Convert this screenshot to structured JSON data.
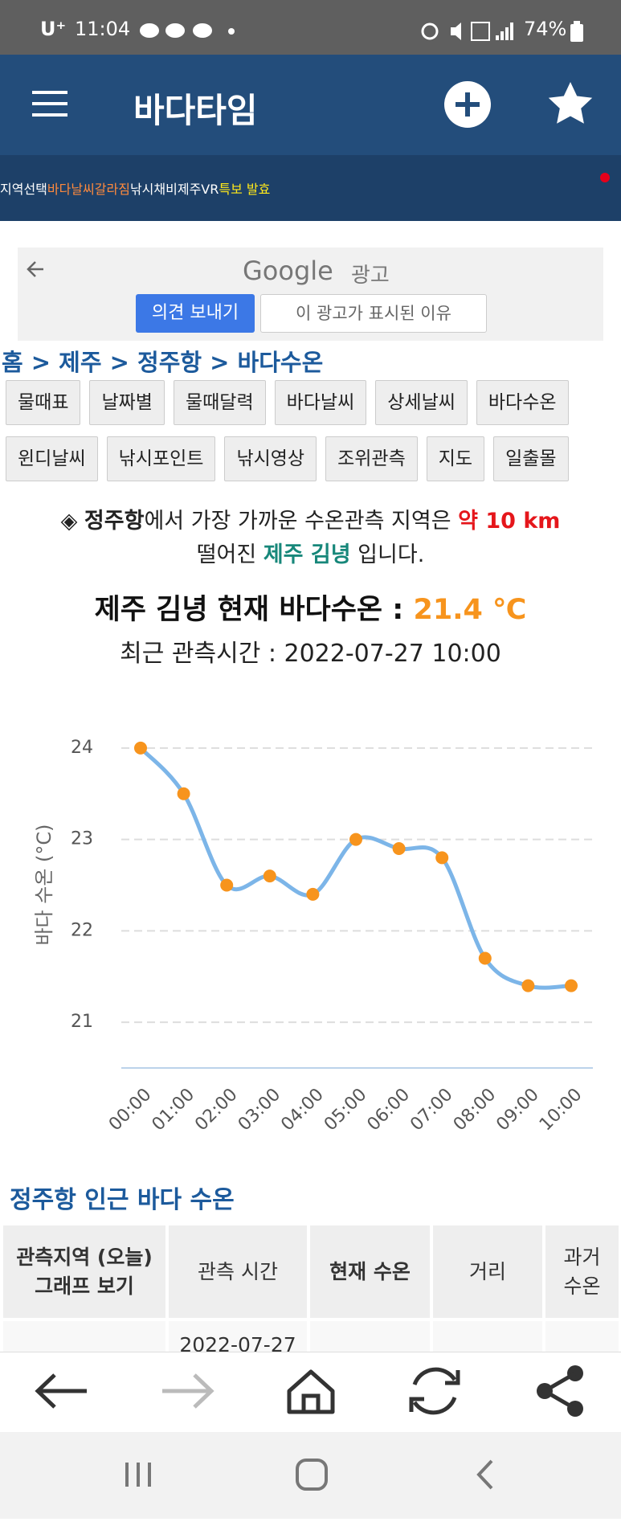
{
  "status_bar": {
    "carrier": "U⁺",
    "time": "11:04",
    "battery": "74%"
  },
  "header": {
    "title": "바다타임"
  },
  "nav": [
    "지역선택",
    "바다날씨",
    "갈라짐",
    "낚시채비",
    "제주VR",
    "특보 발효"
  ],
  "ad": {
    "brand": "Google",
    "label": "광고",
    "feedback": "의견 보내기",
    "why": "이 광고가 표시된 이유"
  },
  "breadcrumb": "홈 > 제주 > 정주항 > 바다수온",
  "tabs": [
    [
      "물때표",
      "날짜별",
      "물때달력",
      "바다날씨",
      "상세날씨",
      "바다수온"
    ],
    [
      "윈디날씨",
      "낚시포인트",
      "낚시영상",
      "조위관측",
      "지도",
      "일출몰"
    ]
  ],
  "info": {
    "mark": "◈",
    "port": "정주항",
    "text1": "에서 가장 가까운 수온관측 지역은 ",
    "distance": "약 10 km",
    "text2": "떨어진 ",
    "station": "제주 김녕",
    "text3": " 입니다."
  },
  "summary": {
    "label": "제주 김녕 현재 바다수온 : ",
    "value": "21.4 ℃",
    "time": "최근 관측시간 : 2022-07-27 10:00"
  },
  "chart_data": {
    "type": "line",
    "y_label": "바다 수온 (°C)",
    "categories": [
      "00:00",
      "01:00",
      "02:00",
      "03:00",
      "04:00",
      "05:00",
      "06:00",
      "07:00",
      "08:00",
      "09:00",
      "10:00"
    ],
    "values": [
      24.0,
      23.5,
      22.5,
      22.6,
      22.4,
      23.0,
      22.9,
      22.8,
      21.7,
      21.4,
      21.4
    ],
    "color": "#7cb5e8",
    "point_color": "#f7941d",
    "ylim": [
      20.5,
      24.5
    ],
    "yticks": [
      21,
      22,
      23,
      24
    ],
    "grid": true
  },
  "section_title": "정주항 인근 바다 수온",
  "table": {
    "headers": [
      "관측지역 (오늘)\n그래프 보기",
      "관측 시간",
      "현재 수온",
      "거리",
      "과거\n수온"
    ],
    "partial_row": {
      "time": "2022-07-27"
    }
  }
}
